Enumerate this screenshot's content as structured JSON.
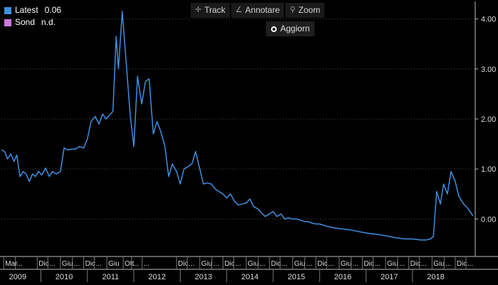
{
  "legend": {
    "items": [
      {
        "label": "Latest",
        "value": "0.06",
        "color": "#3f8fe0"
      },
      {
        "label": "Sond",
        "value": "n.d.",
        "color": "#cc77dd"
      }
    ]
  },
  "toolbar": {
    "track_label": "Track",
    "annotate_label": "Annotare",
    "zoom_label": "Zoom",
    "refresh_label": "Aggiorn"
  },
  "colors": {
    "background": "#000000",
    "line": "#3f8fe0",
    "grid": "#4a4a4a",
    "axis_text": "#dcdcdc"
  },
  "chart_data": {
    "type": "line",
    "ylim": [
      -0.75,
      4.35
    ],
    "xlim": [
      2009.15,
      2019.35
    ],
    "grid": "horizontal dotted",
    "y_ticks": [
      {
        "value": 4.0,
        "label": "4.00"
      },
      {
        "value": 3.0,
        "label": "3.00"
      },
      {
        "value": 2.0,
        "label": "2.00"
      },
      {
        "value": 1.0,
        "label": "1.00"
      },
      {
        "value": 0.0,
        "label": "0.00"
      }
    ],
    "x_month_ticks": [
      {
        "x": 2009.2,
        "label": "Mar"
      },
      {
        "x": 2009.45,
        "label": "..."
      },
      {
        "x": 2009.92,
        "label": "Dic"
      },
      {
        "x": 2010.15,
        "label": "..."
      },
      {
        "x": 2010.42,
        "label": "Giu"
      },
      {
        "x": 2010.68,
        "label": "..."
      },
      {
        "x": 2010.92,
        "label": "Dic"
      },
      {
        "x": 2011.15,
        "label": "..."
      },
      {
        "x": 2011.42,
        "label": "Giu"
      },
      {
        "x": 2011.77,
        "label": "Ott"
      },
      {
        "x": 2011.95,
        "label": "..."
      },
      {
        "x": 2012.18,
        "label": "..."
      },
      {
        "x": 2012.92,
        "label": "Dic"
      },
      {
        "x": 2013.15,
        "label": "..."
      },
      {
        "x": 2013.42,
        "label": "Giu"
      },
      {
        "x": 2013.68,
        "label": "..."
      },
      {
        "x": 2013.92,
        "label": "Dic"
      },
      {
        "x": 2014.15,
        "label": "..."
      },
      {
        "x": 2014.42,
        "label": "Giu"
      },
      {
        "x": 2014.68,
        "label": "..."
      },
      {
        "x": 2014.92,
        "label": "Dic"
      },
      {
        "x": 2015.15,
        "label": "..."
      },
      {
        "x": 2015.42,
        "label": "Giu"
      },
      {
        "x": 2015.68,
        "label": "..."
      },
      {
        "x": 2015.92,
        "label": "Dic"
      },
      {
        "x": 2016.15,
        "label": "..."
      },
      {
        "x": 2016.42,
        "label": "Giu"
      },
      {
        "x": 2016.68,
        "label": "..."
      },
      {
        "x": 2016.92,
        "label": "Dic"
      },
      {
        "x": 2017.15,
        "label": "..."
      },
      {
        "x": 2017.42,
        "label": "Giu"
      },
      {
        "x": 2017.68,
        "label": "..."
      },
      {
        "x": 2017.92,
        "label": "Dic"
      },
      {
        "x": 2018.15,
        "label": "..."
      },
      {
        "x": 2018.42,
        "label": "Giu"
      },
      {
        "x": 2018.68,
        "label": "..."
      },
      {
        "x": 2018.92,
        "label": "Dic"
      },
      {
        "x": 2019.15,
        "label": "..."
      }
    ],
    "x_year_labels": [
      {
        "x": 2009.5,
        "label": "2009"
      },
      {
        "x": 2010.5,
        "label": "2010"
      },
      {
        "x": 2011.5,
        "label": "2011"
      },
      {
        "x": 2012.5,
        "label": "2012"
      },
      {
        "x": 2013.5,
        "label": "2013"
      },
      {
        "x": 2014.5,
        "label": "2014"
      },
      {
        "x": 2015.5,
        "label": "2015"
      },
      {
        "x": 2016.5,
        "label": "2016"
      },
      {
        "x": 2017.5,
        "label": "2017"
      },
      {
        "x": 2018.5,
        "label": "2018"
      }
    ],
    "series": [
      {
        "color": "#3f8fe0",
        "x": [
          2009.15,
          2009.22,
          2009.28,
          2009.35,
          2009.42,
          2009.48,
          2009.55,
          2009.62,
          2009.68,
          2009.75,
          2009.82,
          2009.88,
          2009.95,
          2010.02,
          2010.1,
          2010.18,
          2010.25,
          2010.33,
          2010.42,
          2010.5,
          2010.58,
          2010.67,
          2010.75,
          2010.83,
          2010.92,
          2011.0,
          2011.08,
          2011.17,
          2011.25,
          2011.33,
          2011.4,
          2011.45,
          2011.5,
          2011.55,
          2011.62,
          2011.67,
          2011.75,
          2011.83,
          2011.92,
          2012.0,
          2012.08,
          2012.17,
          2012.25,
          2012.33,
          2012.42,
          2012.5,
          2012.58,
          2012.67,
          2012.75,
          2012.83,
          2012.92,
          2013.0,
          2013.08,
          2013.17,
          2013.25,
          2013.33,
          2013.42,
          2013.5,
          2013.58,
          2013.67,
          2013.75,
          2013.83,
          2013.92,
          2014.0,
          2014.08,
          2014.17,
          2014.25,
          2014.33,
          2014.42,
          2014.5,
          2014.58,
          2014.67,
          2014.75,
          2014.83,
          2014.92,
          2015.0,
          2015.08,
          2015.17,
          2015.25,
          2015.33,
          2015.42,
          2015.5,
          2015.58,
          2015.67,
          2015.75,
          2015.83,
          2015.92,
          2016.0,
          2016.17,
          2016.33,
          2016.5,
          2016.67,
          2016.83,
          2017.0,
          2017.17,
          2017.33,
          2017.5,
          2017.67,
          2017.83,
          2018.0,
          2018.17,
          2018.3,
          2018.38,
          2018.45,
          2018.52,
          2018.6,
          2018.67,
          2018.75,
          2018.83,
          2018.92,
          2019.0,
          2019.1,
          2019.2,
          2019.3
        ],
        "y": [
          1.38,
          1.35,
          1.2,
          1.3,
          1.15,
          1.28,
          0.85,
          0.95,
          0.9,
          0.75,
          0.9,
          0.85,
          0.95,
          0.88,
          1.02,
          0.85,
          0.95,
          0.9,
          0.95,
          1.42,
          1.38,
          1.4,
          1.4,
          1.45,
          1.42,
          1.6,
          1.95,
          2.05,
          1.9,
          2.1,
          2.0,
          2.05,
          2.1,
          2.15,
          3.65,
          3.0,
          4.15,
          3.2,
          2.1,
          1.45,
          2.85,
          2.3,
          2.75,
          2.8,
          1.7,
          1.95,
          1.75,
          1.45,
          0.85,
          1.1,
          0.95,
          0.7,
          1.0,
          1.05,
          1.1,
          1.35,
          1.0,
          0.7,
          0.72,
          0.7,
          0.6,
          0.55,
          0.5,
          0.42,
          0.5,
          0.35,
          0.28,
          0.3,
          0.32,
          0.4,
          0.25,
          0.2,
          0.12,
          0.05,
          0.1,
          0.15,
          0.05,
          0.1,
          0.0,
          0.02,
          0.0,
          0.0,
          -0.02,
          -0.05,
          -0.05,
          -0.08,
          -0.1,
          -0.1,
          -0.15,
          -0.18,
          -0.2,
          -0.22,
          -0.25,
          -0.28,
          -0.3,
          -0.32,
          -0.35,
          -0.38,
          -0.4,
          -0.4,
          -0.42,
          -0.42,
          -0.4,
          -0.35,
          0.55,
          0.3,
          0.7,
          0.5,
          0.95,
          0.75,
          0.45,
          0.3,
          0.2,
          0.06
        ]
      }
    ]
  }
}
